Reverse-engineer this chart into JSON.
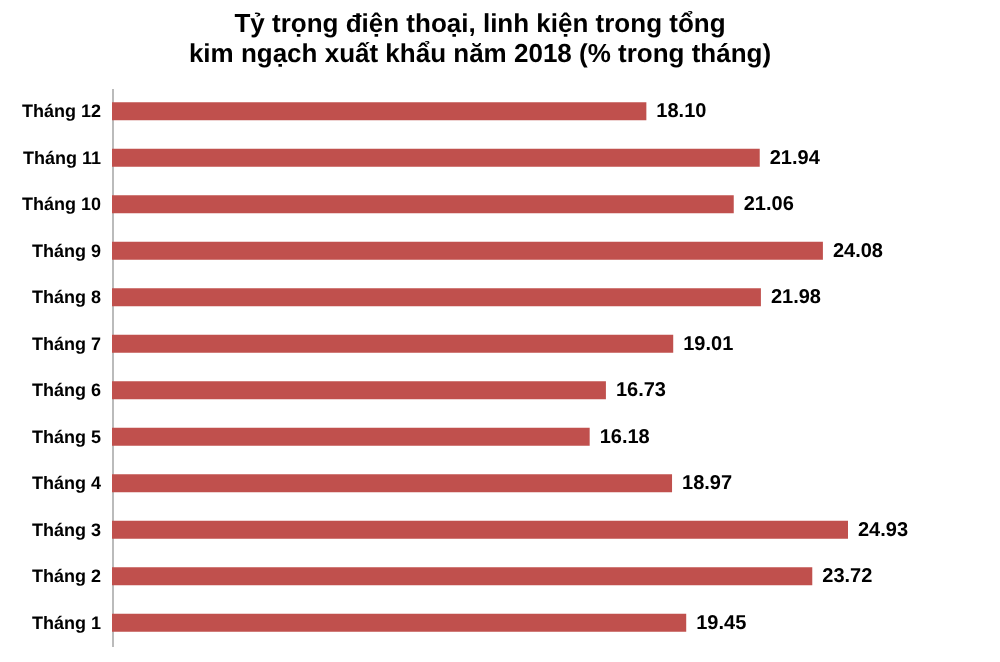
{
  "chart_data": {
    "type": "bar",
    "orientation": "horizontal",
    "title": "Tỷ trọng điện thoại, linh kiện trong tổng kim ngạch xuất khẩu năm 2018 (% trong tháng)",
    "categories": [
      "Tháng 12",
      "Tháng 11",
      "Tháng 10",
      "Tháng 9",
      "Tháng 8",
      "Tháng 7",
      "Tháng 6",
      "Tháng 5",
      "Tháng 4",
      "Tháng 3",
      "Tháng 2",
      "Tháng 1"
    ],
    "values": [
      18.1,
      21.94,
      21.06,
      24.08,
      21.98,
      19.01,
      16.73,
      16.18,
      18.97,
      24.93,
      23.72,
      19.45
    ],
    "value_labels": [
      "18.10",
      "21.94",
      "21.06",
      "24.08",
      "21.98",
      "19.01",
      "16.73",
      "16.18",
      "18.97",
      "24.93",
      "23.72",
      "19.45"
    ],
    "color": "#c0504d",
    "grid": false
  }
}
